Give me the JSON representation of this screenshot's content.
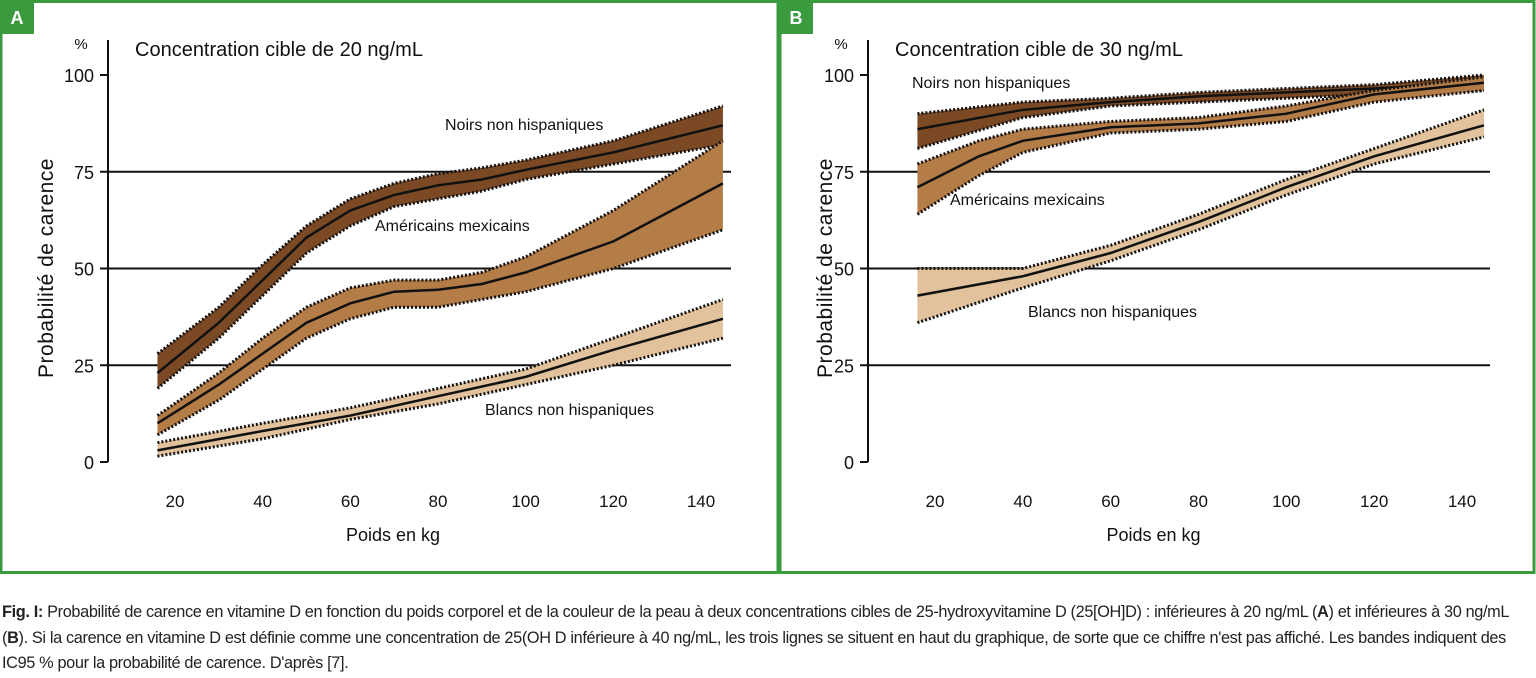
{
  "caption": {
    "label": "Fig. I:",
    "text1": " Probabilité de carence en vitamine D en fonction du poids corporel et de la couleur de la peau à deux concentrations cibles de 25-hydroxyvitamine D (25[OH]D) : inférieures à 20 ng/mL (",
    "bold_a": "A",
    "text2": ") et inférieures à 30 ng/mL (",
    "bold_b": "B",
    "text3": "). Si la carence en vitamine D est définie comme une concentration de 25(OH D inférieure à 40 ng/mL, les trois lignes se situent en haut du graphique, de sorte que ce chiffre n'est pas affiché. Les bandes indiquent des IC95 % pour la probabilité de carence. D'après [7]."
  },
  "colors": {
    "border": "#3a9a3e",
    "dark": "#7b4a25",
    "medium": "#b47c47",
    "light": "#e2c29c"
  },
  "chart_data": [
    {
      "type": "area",
      "panel": "A",
      "title": "Concentration cible de 20 ng/mL",
      "ylabel": "Probabilité de carence",
      "yunit": "%",
      "xlabel": "Poids en kg",
      "xlim": [
        16,
        145
      ],
      "ylim": [
        0,
        100
      ],
      "xticks": [
        "20",
        "40",
        "60",
        "80",
        "100",
        "120",
        "140"
      ],
      "yticks": [
        "0",
        "25",
        "50",
        "75",
        "100"
      ],
      "gridlines": [
        25,
        50,
        75
      ],
      "series": [
        {
          "name": "Noirs non hispaniques",
          "color": "dark",
          "x": [
            16,
            30,
            40,
            50,
            60,
            70,
            80,
            90,
            100,
            120,
            145
          ],
          "mid": [
            23,
            36,
            47,
            58,
            65,
            69,
            71.5,
            73,
            75.5,
            80,
            87
          ],
          "lo": [
            19,
            32,
            43,
            54,
            61,
            66,
            68,
            70,
            73,
            77,
            82
          ],
          "hi": [
            28,
            40,
            51,
            61,
            68,
            72,
            74.5,
            76,
            78,
            83,
            92
          ]
        },
        {
          "name": "Américains mexicains",
          "color": "medium",
          "x": [
            16,
            30,
            40,
            50,
            60,
            70,
            80,
            90,
            100,
            120,
            145
          ],
          "mid": [
            10,
            20,
            28,
            36,
            41,
            44,
            44.5,
            46,
            49,
            57,
            72
          ],
          "lo": [
            7,
            16,
            24,
            32,
            37,
            40,
            40,
            42,
            44,
            50,
            60
          ],
          "hi": [
            12,
            23,
            32,
            40,
            45,
            47,
            47,
            49,
            53,
            65,
            83
          ]
        },
        {
          "name": "Blancs non hispaniques",
          "color": "light",
          "x": [
            16,
            40,
            60,
            80,
            100,
            120,
            145
          ],
          "mid": [
            3,
            8,
            12,
            17,
            22,
            29,
            37
          ],
          "lo": [
            1.5,
            6,
            11,
            15,
            20,
            25,
            32
          ],
          "hi": [
            5,
            10,
            14,
            19,
            24,
            32,
            42
          ]
        }
      ]
    },
    {
      "type": "area",
      "panel": "B",
      "title": "Concentration cible de 30 ng/mL",
      "ylabel": "Probabilité de carence",
      "yunit": "%",
      "xlabel": "Poids en kg",
      "xlim": [
        16,
        145
      ],
      "ylim": [
        0,
        100
      ],
      "xticks": [
        "20",
        "40",
        "60",
        "80",
        "100",
        "120",
        "140"
      ],
      "yticks": [
        "0",
        "25",
        "50",
        "75",
        "100"
      ],
      "gridlines": [
        25,
        50,
        75
      ],
      "series": [
        {
          "name": "Noirs non hispaniques",
          "color": "dark",
          "x": [
            16,
            40,
            60,
            80,
            100,
            120,
            145
          ],
          "mid": [
            86,
            91,
            93,
            94.5,
            95.5,
            96.5,
            98
          ],
          "lo": [
            81,
            89,
            92,
            93,
            94,
            95,
            96
          ],
          "hi": [
            90,
            93,
            94,
            95.5,
            96.5,
            97.5,
            100
          ]
        },
        {
          "name": "Américains mexicains",
          "color": "medium",
          "x": [
            16,
            30,
            40,
            60,
            80,
            100,
            120,
            145
          ],
          "mid": [
            71,
            79,
            83,
            86.5,
            87.5,
            90,
            95,
            98
          ],
          "lo": [
            64,
            74,
            80,
            85,
            86,
            88,
            93,
            96
          ],
          "hi": [
            77,
            83,
            86,
            88,
            89,
            92,
            96,
            99.5
          ]
        },
        {
          "name": "Blancs non hispaniques",
          "color": "light",
          "x": [
            16,
            40,
            60,
            80,
            100,
            120,
            145
          ],
          "mid": [
            43,
            48,
            54,
            62,
            71,
            79,
            87
          ],
          "lo": [
            36,
            45,
            52,
            60,
            69,
            77,
            84
          ],
          "hi": [
            50,
            50,
            56,
            64,
            73,
            81,
            91
          ]
        }
      ]
    }
  ]
}
